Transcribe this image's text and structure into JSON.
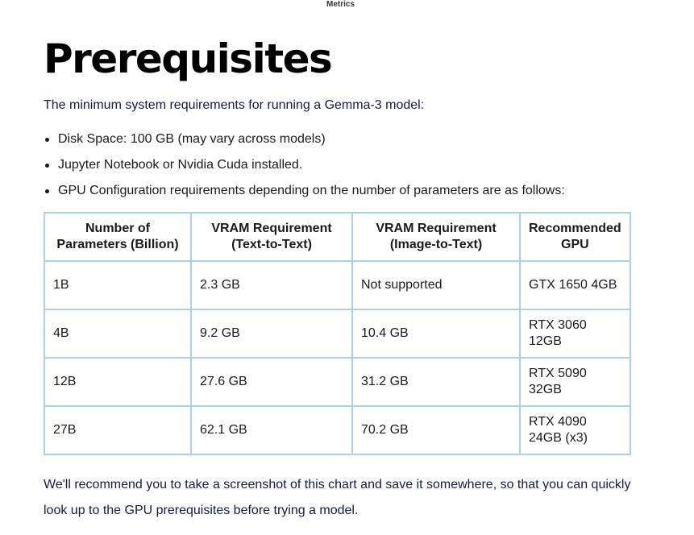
{
  "header": {
    "label": "Metrics"
  },
  "title": "Prerequisites",
  "intro": "The minimum system requirements for running a Gemma-3 model:",
  "requirements": [
    "Disk Space: 100 GB (may vary across models)",
    "Jupyter Notebook or Nvidia Cuda installed.",
    "GPU Configuration requirements depending on the number of parameters are as follows:"
  ],
  "table": {
    "headers": [
      "Number of Parameters (Billion)",
      "VRAM Requirement (Text-to-Text)",
      "VRAM Requirement (Image-to-Text)",
      "Recommended GPU"
    ],
    "rows": [
      [
        "1B",
        "2.3 GB",
        "Not supported",
        "GTX 1650 4GB"
      ],
      [
        "4B",
        "9.2 GB",
        "10.4 GB",
        "RTX 3060 12GB"
      ],
      [
        "12B",
        "27.6 GB",
        "31.2 GB",
        "RTX 5090 32GB"
      ],
      [
        "27B",
        "62.1 GB",
        "70.2 GB",
        "RTX 4090 24GB (x3)"
      ]
    ]
  },
  "footer": "We'll recommend you to take a screenshot of this chart and save it somewhere, so that you can quickly look up to the GPU prerequisites before trying a model."
}
